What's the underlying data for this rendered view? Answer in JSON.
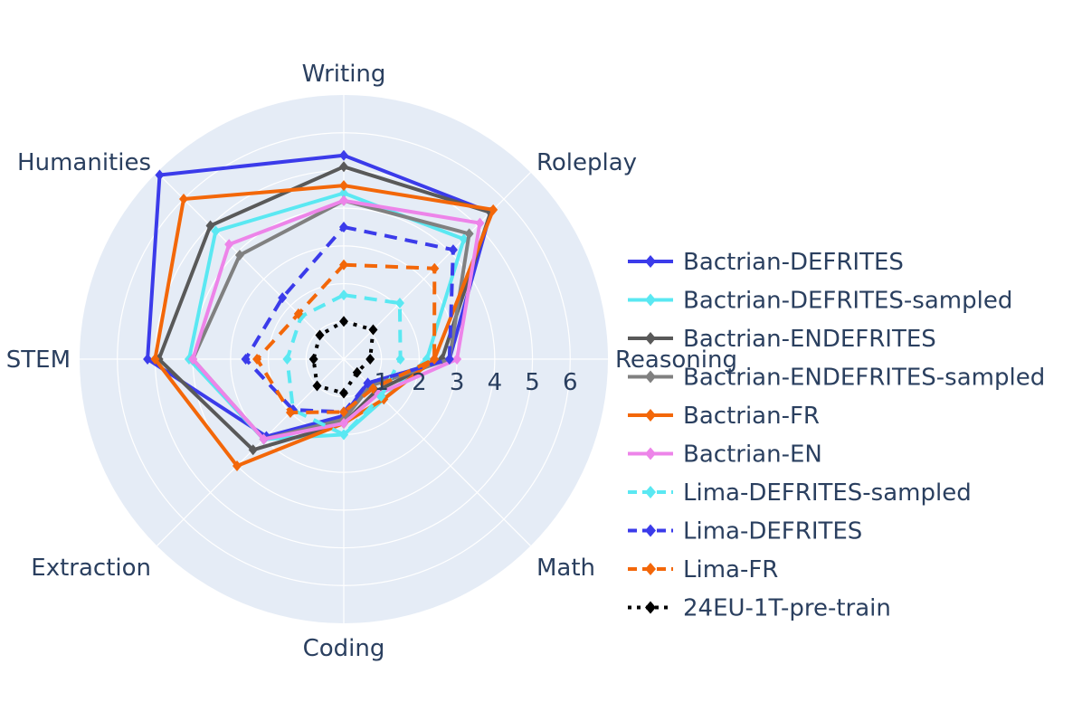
{
  "chart_data": {
    "type": "radar",
    "axes": [
      "Writing",
      "Roleplay",
      "Reasoning",
      "Math",
      "Coding",
      "Extraction",
      "STEM",
      "Humanities"
    ],
    "radial_ticks": [
      "1",
      "2",
      "3",
      "4",
      "5",
      "6"
    ],
    "radial_range": [
      0,
      7
    ],
    "grid": true,
    "legend_position": "right",
    "series": [
      {
        "name": "Bactrian-DEFRITES",
        "color": "#3b3bea",
        "dash": "solid",
        "values": [
          5.4,
          5.5,
          2.8,
          0.9,
          1.5,
          2.9,
          5.2,
          6.9
        ]
      },
      {
        "name": "Bactrian-DEFRITES-sampled",
        "color": "#5ae8f2",
        "dash": "solid",
        "values": [
          4.4,
          4.5,
          2.2,
          1.5,
          2.0,
          3.0,
          4.1,
          4.8
        ]
      },
      {
        "name": "Bactrian-ENDEFRITES",
        "color": "#595959",
        "dash": "solid",
        "values": [
          5.1,
          5.5,
          2.6,
          1.2,
          1.7,
          3.4,
          4.9,
          5.0
        ]
      },
      {
        "name": "Bactrian-ENDEFRITES-sampled",
        "color": "#808080",
        "dash": "solid",
        "values": [
          4.2,
          4.7,
          2.8,
          1.0,
          1.6,
          3.0,
          4.0,
          3.9
        ]
      },
      {
        "name": "Bactrian-FR",
        "color": "#f36709",
        "dash": "solid",
        "values": [
          4.6,
          5.6,
          2.4,
          1.5,
          1.7,
          4.0,
          5.0,
          6.0
        ]
      },
      {
        "name": "Bactrian-EN",
        "color": "#ed84e9",
        "dash": "solid",
        "values": [
          4.2,
          5.1,
          3.0,
          1.3,
          1.7,
          3.0,
          4.0,
          4.3
        ]
      },
      {
        "name": "Lima-DEFRITES-sampled",
        "color": "#5ae8f2",
        "dash": "dash",
        "values": [
          1.7,
          2.1,
          1.5,
          1.4,
          2.0,
          1.9,
          1.5,
          1.6
        ]
      },
      {
        "name": "Lima-DEFRITES",
        "color": "#3b3bea",
        "dash": "dash",
        "values": [
          3.5,
          4.1,
          2.8,
          0.9,
          1.4,
          1.9,
          2.6,
          2.3
        ]
      },
      {
        "name": "Lima-FR",
        "color": "#f36709",
        "dash": "dash",
        "values": [
          2.5,
          3.4,
          2.4,
          1.1,
          1.4,
          2.0,
          2.3,
          1.7
        ]
      },
      {
        "name": "24EU-1T-pre-train",
        "color": "#000000",
        "dash": "dot",
        "values": [
          1.0,
          1.1,
          0.7,
          0.5,
          0.9,
          1.0,
          0.8,
          0.9
        ]
      }
    ]
  }
}
